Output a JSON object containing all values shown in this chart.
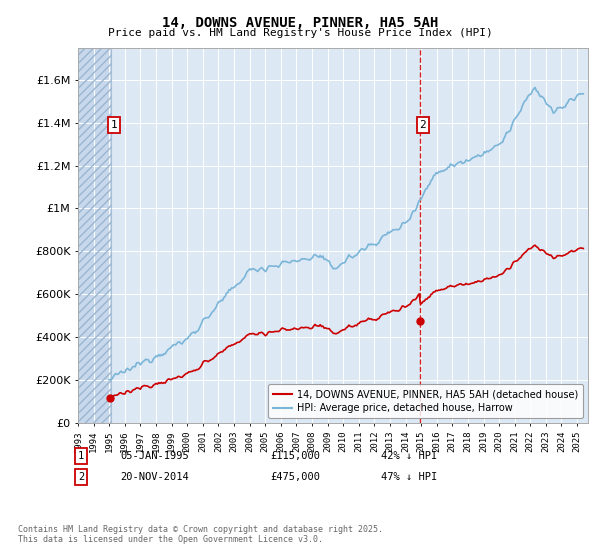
{
  "title": "14, DOWNS AVENUE, PINNER, HA5 5AH",
  "subtitle": "Price paid vs. HM Land Registry's House Price Index (HPI)",
  "ytick_vals": [
    0,
    200000,
    400000,
    600000,
    800000,
    1000000,
    1200000,
    1400000,
    1600000
  ],
  "ylim": [
    0,
    1750000
  ],
  "hpi_color": "#7ab5d8",
  "price_color": "#cc0000",
  "vline_color": "#cc0000",
  "bg_color": "#dde8f5",
  "legend_label_red": "14, DOWNS AVENUE, PINNER, HA5 5AH (detached house)",
  "legend_label_blue": "HPI: Average price, detached house, Harrow",
  "annotation1_date": "05-JAN-1995",
  "annotation1_price": "£115,000",
  "annotation1_pct": "42% ↓ HPI",
  "annotation2_date": "20-NOV-2014",
  "annotation2_price": "£475,000",
  "annotation2_pct": "47% ↓ HPI",
  "footer": "Contains HM Land Registry data © Crown copyright and database right 2025.\nThis data is licensed under the Open Government Licence v3.0.",
  "sale1_year": 1995.03,
  "sale1_price": 115000,
  "sale2_year": 2014.9,
  "sale2_price": 475000,
  "xlim_start": 1993.0,
  "xlim_end": 2025.7,
  "hatch_end": 1995.1
}
